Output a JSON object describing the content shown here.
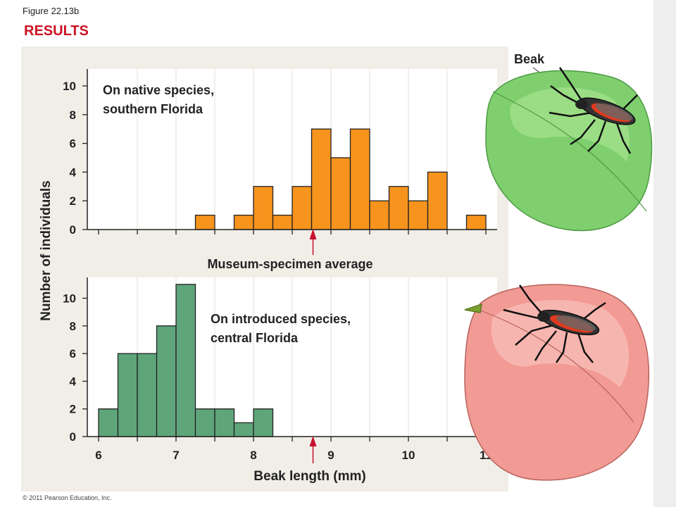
{
  "figure_label": "Figure 22.13b",
  "heading": "RESULTS",
  "beak_label": "Beak",
  "copyright": "© 2011 Pearson Education, Inc.",
  "marker_label": "Museum-specimen average",
  "colors": {
    "native_fill": "#f7941d",
    "introduced_fill": "#5fa57a",
    "plot_bg": "#f1eee8",
    "arrow": "#c8102e",
    "heading": "#cc1122"
  },
  "chart_data": [
    {
      "type": "bar",
      "panel": "top",
      "title": "On native species,\nsouthern Florida",
      "ylabel": "Number of individuals",
      "xlabel": "",
      "bin_width": 0.25,
      "bins_start": [
        7.25,
        7.75,
        8.0,
        8.25,
        8.5,
        8.75,
        9.0,
        9.25,
        9.5,
        9.75,
        10.0,
        10.25,
        10.75
      ],
      "values": [
        1,
        1,
        3,
        1,
        3,
        7,
        5,
        7,
        2,
        3,
        2,
        4,
        1
      ],
      "ylim": [
        0,
        11
      ],
      "yticks": [
        0,
        2,
        4,
        6,
        8,
        10
      ],
      "xlim": [
        6,
        11
      ],
      "marker_x": 8.75
    },
    {
      "type": "bar",
      "panel": "bottom",
      "title": "On introduced species,\ncentral Florida",
      "ylabel": "Number of individuals",
      "xlabel": "Beak length (mm)",
      "bin_width": 0.25,
      "bins_start": [
        6.0,
        6.25,
        6.5,
        6.75,
        7.0,
        7.25,
        7.5,
        7.75,
        8.0
      ],
      "values": [
        2,
        6,
        6,
        8,
        11,
        2,
        2,
        1,
        2
      ],
      "ylim": [
        0,
        11.5
      ],
      "yticks": [
        0,
        2,
        4,
        6,
        8,
        10
      ],
      "xlim": [
        6,
        11
      ],
      "xticks": [
        6,
        7,
        8,
        9,
        10,
        11
      ],
      "marker_x": 8.75
    }
  ]
}
